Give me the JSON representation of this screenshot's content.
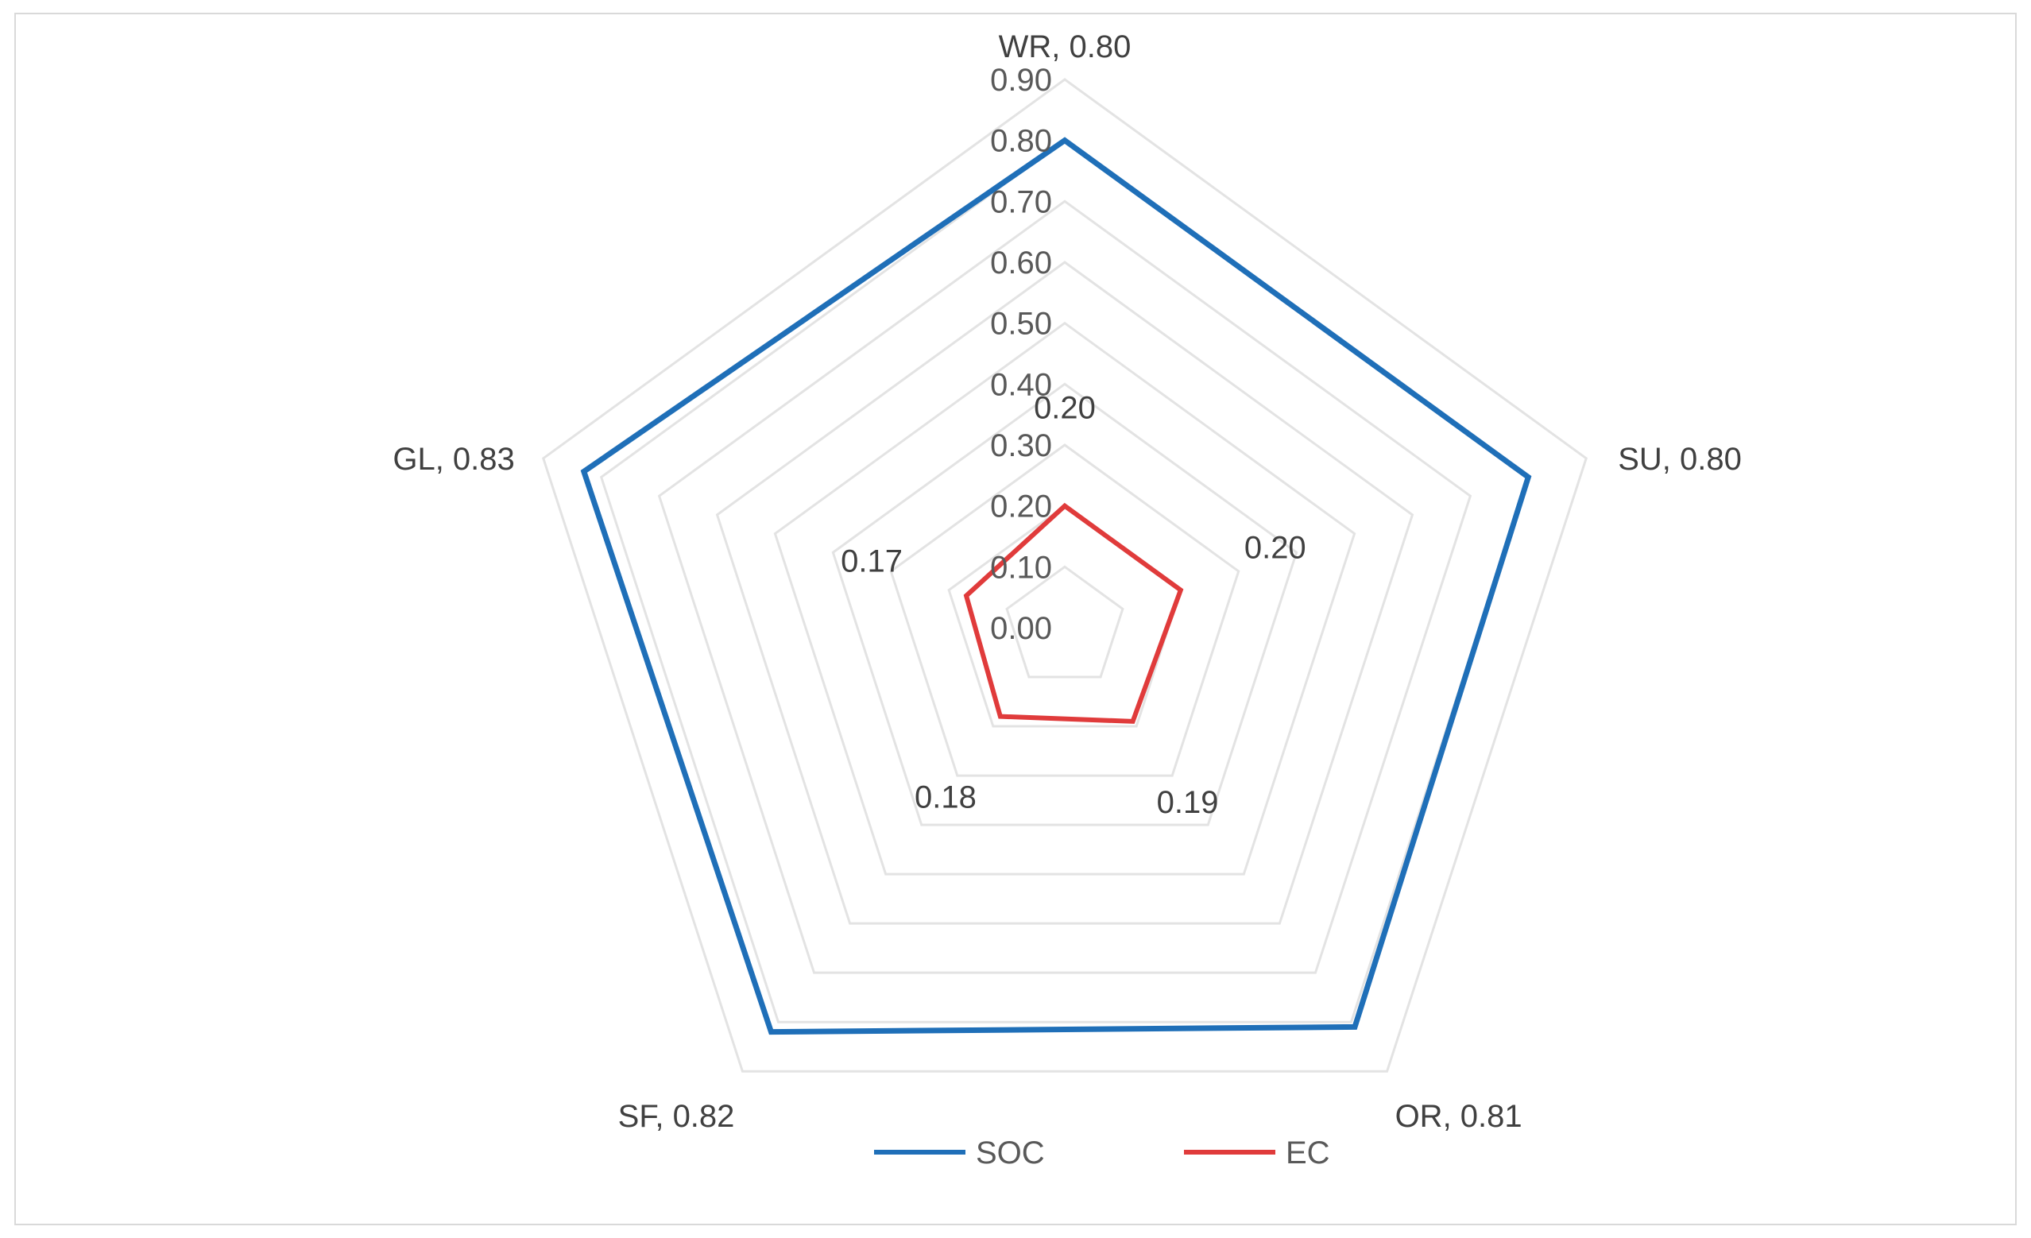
{
  "chart_data": {
    "type": "radar",
    "categories": [
      "WR",
      "SU",
      "OR",
      "SF",
      "GL"
    ],
    "category_labels": [
      "WR, 0.80",
      "SU, 0.80",
      "OR, 0.81",
      "SF, 0.82",
      "GL, 0.83"
    ],
    "rlim": [
      0,
      0.9
    ],
    "ticks": [
      "0.00",
      "0.10",
      "0.20",
      "0.30",
      "0.40",
      "0.50",
      "0.60",
      "0.70",
      "0.80",
      "0.90"
    ],
    "grid": true,
    "legend_position": "bottom",
    "series": [
      {
        "name": "SOC",
        "color": "#1f6fb8",
        "values": [
          0.8,
          0.8,
          0.81,
          0.82,
          0.83
        ],
        "show_labels": false
      },
      {
        "name": "EC",
        "color": "#e03b3b",
        "values": [
          0.2,
          0.2,
          0.19,
          0.18,
          0.17
        ],
        "labels": [
          "0.20",
          "0.20",
          "0.19",
          "0.18",
          "0.17"
        ],
        "show_labels": true
      }
    ]
  }
}
